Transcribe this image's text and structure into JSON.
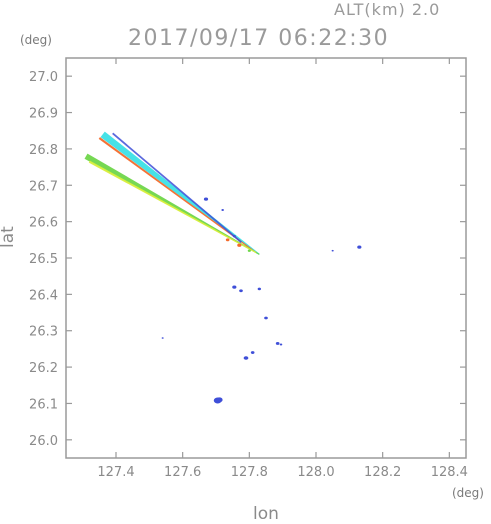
{
  "header": {
    "altitude": "ALT(km) 2.0",
    "timestamp": "2017/09/17 06:22:30"
  },
  "chart_data": {
    "type": "heatmap",
    "title": "2017/09/17 06:22:30",
    "subtitle": "ALT(km) 2.0",
    "xlabel": "lon",
    "ylabel": "lat",
    "x_unit": "(deg)",
    "y_unit": "(deg)",
    "xlim": [
      127.25,
      128.45
    ],
    "ylim": [
      25.95,
      27.05
    ],
    "x_ticks": [
      "127.4",
      "127.6",
      "127.8",
      "128.0",
      "128.2",
      "128.4"
    ],
    "y_ticks": [
      "26.0",
      "26.1",
      "26.2",
      "26.3",
      "26.4",
      "26.5",
      "26.6",
      "26.7",
      "26.8",
      "26.9",
      "27.0"
    ],
    "grid": false,
    "colors": {
      "axis": "#9a9a9a",
      "blue": "#3f4fd8",
      "cyan": "#3ce0e6",
      "teal": "#2fb6a6",
      "orange": "#f46a2a",
      "green": "#6fd64a",
      "yellow": "#d9ee3c"
    },
    "streaks": [
      {
        "name": "upper",
        "from": [
          127.36,
          26.84
        ],
        "to": [
          127.83,
          26.51
        ],
        "color": "cyan"
      },
      {
        "name": "upper-edge",
        "from": [
          127.35,
          26.83
        ],
        "to": [
          127.82,
          26.515
        ],
        "color": "orange"
      },
      {
        "name": "lower",
        "from": [
          127.31,
          26.78
        ],
        "to": [
          127.83,
          26.51
        ],
        "color": "green"
      },
      {
        "name": "lower-edge",
        "from": [
          127.32,
          26.765
        ],
        "to": [
          127.82,
          26.515
        ],
        "color": "yellow"
      }
    ],
    "echoes": [
      {
        "lon": 127.705,
        "lat": 26.108,
        "size": 3,
        "color": "blue"
      },
      {
        "lon": 127.71,
        "lat": 26.11,
        "size": 2.5,
        "color": "blue"
      },
      {
        "lon": 127.79,
        "lat": 26.225,
        "size": 1.8,
        "color": "blue"
      },
      {
        "lon": 127.81,
        "lat": 26.24,
        "size": 1.4,
        "color": "blue"
      },
      {
        "lon": 127.85,
        "lat": 26.335,
        "size": 1.4,
        "color": "blue"
      },
      {
        "lon": 127.885,
        "lat": 26.265,
        "size": 1.4,
        "color": "blue"
      },
      {
        "lon": 127.895,
        "lat": 26.262,
        "size": 1.0,
        "color": "blue"
      },
      {
        "lon": 127.755,
        "lat": 26.42,
        "size": 1.6,
        "color": "blue"
      },
      {
        "lon": 127.775,
        "lat": 26.41,
        "size": 1.4,
        "color": "blue"
      },
      {
        "lon": 127.83,
        "lat": 26.415,
        "size": 1.3,
        "color": "blue"
      },
      {
        "lon": 128.13,
        "lat": 26.53,
        "size": 1.6,
        "color": "blue"
      },
      {
        "lon": 127.755,
        "lat": 26.56,
        "size": 1.2,
        "color": "blue"
      },
      {
        "lon": 127.67,
        "lat": 26.662,
        "size": 1.6,
        "color": "blue"
      },
      {
        "lon": 127.72,
        "lat": 26.632,
        "size": 1.0,
        "color": "blue"
      },
      {
        "lon": 127.54,
        "lat": 26.28,
        "size": 0.8,
        "color": "blue"
      },
      {
        "lon": 128.05,
        "lat": 26.52,
        "size": 0.8,
        "color": "blue"
      },
      {
        "lon": 127.77,
        "lat": 26.535,
        "size": 1.6,
        "color": "orange"
      },
      {
        "lon": 127.735,
        "lat": 26.55,
        "size": 1.4,
        "color": "orange"
      },
      {
        "lon": 127.8,
        "lat": 26.52,
        "size": 1.2,
        "color": "green"
      }
    ]
  }
}
